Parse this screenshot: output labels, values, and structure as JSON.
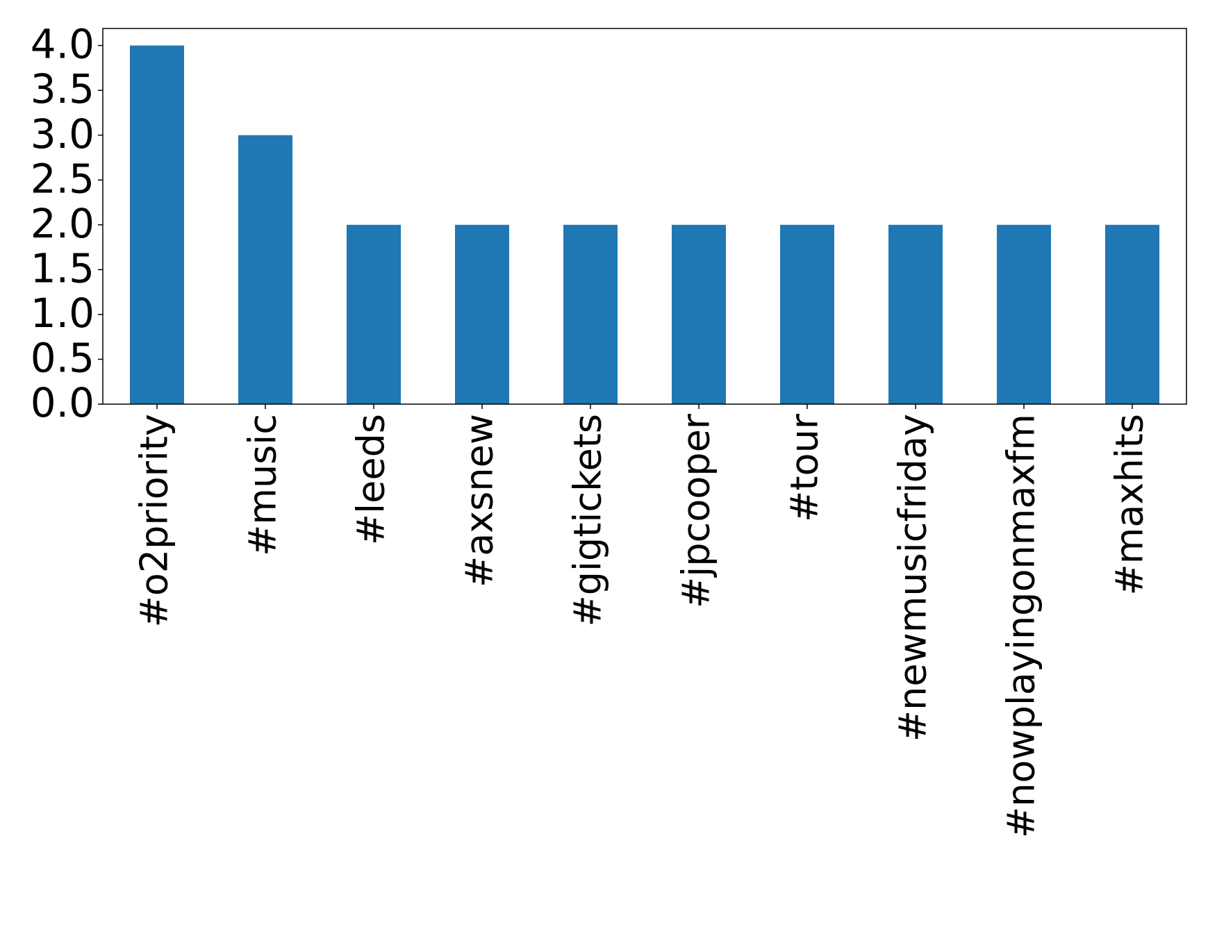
{
  "chart_data": {
    "type": "bar",
    "categories": [
      "#o2priority",
      "#music",
      "#leeds",
      "#axsnew",
      "#gigtickets",
      "#jpcooper",
      "#tour",
      "#newmusicfriday",
      "#nowplayingonmaxfm",
      "#maxhits"
    ],
    "values": [
      4,
      3,
      2,
      2,
      2,
      2,
      2,
      2,
      2,
      2
    ],
    "color": "#1f77b4",
    "ylim": [
      0,
      4.19
    ],
    "yticks": [
      {
        "value": 0,
        "label": "0.0"
      },
      {
        "value": 0.5,
        "label": "0.5"
      },
      {
        "value": 1,
        "label": "1.0"
      },
      {
        "value": 1.5,
        "label": "1.5"
      },
      {
        "value": 2,
        "label": "2.0"
      },
      {
        "value": 2.5,
        "label": "2.5"
      },
      {
        "value": 3,
        "label": "3.0"
      },
      {
        "value": 3.5,
        "label": "3.5"
      },
      {
        "value": 4,
        "label": "4.0"
      }
    ],
    "grid": false
  }
}
